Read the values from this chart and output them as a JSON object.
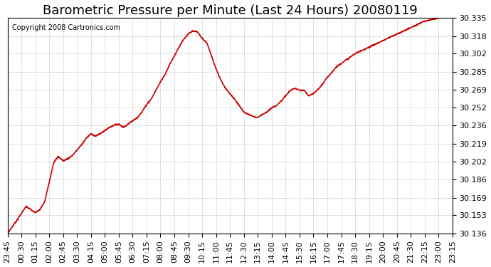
{
  "title": "Barometric Pressure per Minute (Last 24 Hours) 20080119",
  "copyright": "Copyright 2008 Cartronics.com",
  "line_color": "#cc0000",
  "background_color": "#ffffff",
  "plot_bg_color": "#ffffff",
  "grid_color": "#aaaaaa",
  "ylim": [
    30.136,
    30.335
  ],
  "yticks": [
    30.136,
    30.153,
    30.169,
    30.186,
    30.202,
    30.219,
    30.236,
    30.252,
    30.269,
    30.285,
    30.302,
    30.318,
    30.335
  ],
  "x_labels": [
    "23:45",
    "00:30",
    "01:15",
    "02:00",
    "02:45",
    "03:30",
    "04:15",
    "05:00",
    "05:45",
    "06:30",
    "07:15",
    "08:00",
    "08:45",
    "09:30",
    "10:15",
    "11:00",
    "11:45",
    "12:30",
    "13:15",
    "14:00",
    "14:45",
    "15:30",
    "16:15",
    "17:00",
    "17:45",
    "18:30",
    "19:15",
    "20:00",
    "20:45",
    "21:30",
    "22:15",
    "23:00",
    "23:15"
  ],
  "title_fontsize": 13,
  "copyright_fontsize": 7,
  "tick_fontsize": 8,
  "line_width": 1.2
}
